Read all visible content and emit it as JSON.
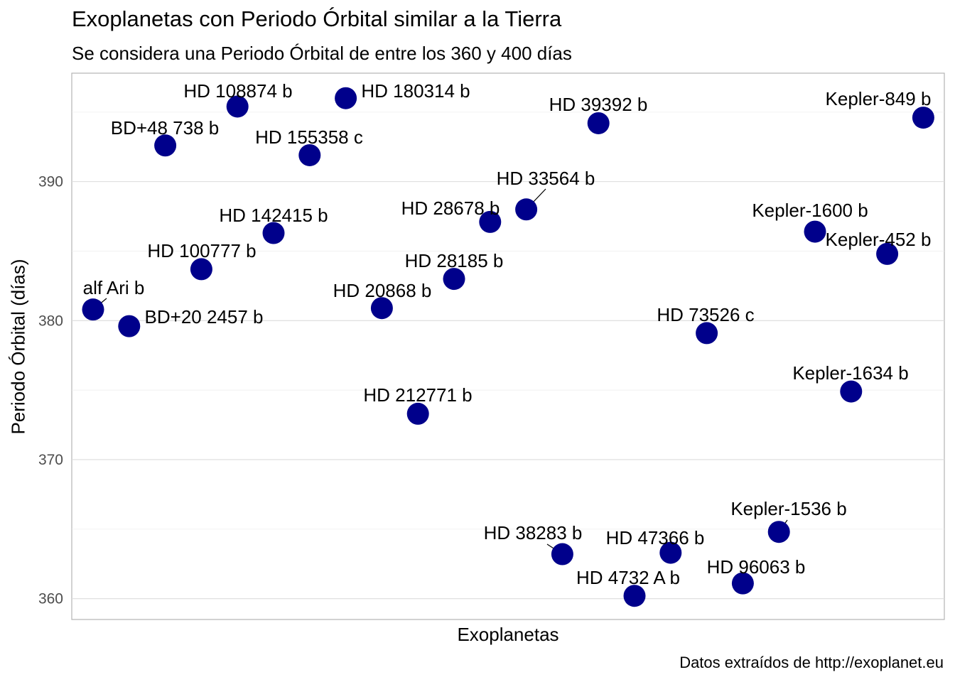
{
  "chart_data": {
    "type": "scatter",
    "title": "Exoplanetas con Periodo Órbital similar a la Tierra",
    "subtitle": "Se considera una Periodo Órbital de entre los 360 y 400 días",
    "xlabel": "Exoplanetas",
    "ylabel": "Periodo Órbital (días)",
    "caption": "Datos extraídos de http://exoplanet.eu",
    "ylim": [
      358.5,
      397.8
    ],
    "yticks": [
      360,
      370,
      380,
      390
    ],
    "x_count": 24,
    "point_color": "#00008B",
    "grid": true,
    "points": [
      {
        "name": "alf Ari b",
        "index": 1,
        "period": 380.8
      },
      {
        "name": "BD+20 2457 b",
        "index": 2,
        "period": 379.6
      },
      {
        "name": "BD+48 738 b",
        "index": 3,
        "period": 392.6
      },
      {
        "name": "HD 100777 b",
        "index": 4,
        "period": 383.7
      },
      {
        "name": "HD 108874 b",
        "index": 5,
        "period": 395.4
      },
      {
        "name": "HD 142415 b",
        "index": 6,
        "period": 386.3
      },
      {
        "name": "HD 155358 c",
        "index": 7,
        "period": 391.9
      },
      {
        "name": "HD 180314 b",
        "index": 8,
        "period": 396.0
      },
      {
        "name": "HD 20868 b",
        "index": 9,
        "period": 380.9
      },
      {
        "name": "HD 212771 b",
        "index": 10,
        "period": 373.3
      },
      {
        "name": "HD 28185 b",
        "index": 11,
        "period": 383.0
      },
      {
        "name": "HD 28678 b",
        "index": 12,
        "period": 387.1
      },
      {
        "name": "HD 33564 b",
        "index": 13,
        "period": 388.0
      },
      {
        "name": "HD 38283 b",
        "index": 14,
        "period": 363.2
      },
      {
        "name": "HD 39392 b",
        "index": 15,
        "period": 394.2
      },
      {
        "name": "HD 4732 A b",
        "index": 16,
        "period": 360.2
      },
      {
        "name": "HD 47366 b",
        "index": 17,
        "period": 363.3
      },
      {
        "name": "HD 73526 c",
        "index": 18,
        "period": 379.1
      },
      {
        "name": "HD 96063 b",
        "index": 19,
        "period": 361.1
      },
      {
        "name": "Kepler-1536 b",
        "index": 20,
        "period": 364.8
      },
      {
        "name": "Kepler-1600 b",
        "index": 21,
        "period": 386.4
      },
      {
        "name": "Kepler-1634 b",
        "index": 22,
        "period": 374.9
      },
      {
        "name": "Kepler-452 b",
        "index": 23,
        "period": 384.8
      },
      {
        "name": "Kepler-849 b",
        "index": 24,
        "period": 394.6
      }
    ]
  }
}
